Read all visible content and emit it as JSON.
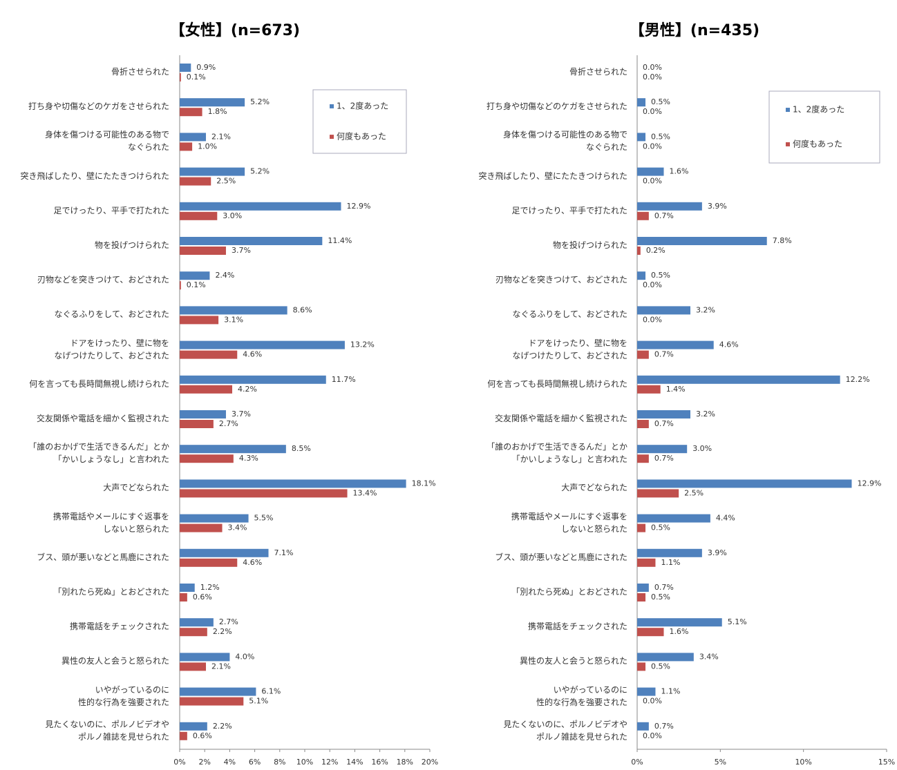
{
  "chart_data": [
    {
      "type": "barh",
      "title": "【女性】(n=673)",
      "categories": [
        "骨折させられた",
        "打ち身や切傷などのケガをさせられた",
        "身体を傷つける可能性のある物で\nなぐられた",
        "突き飛ばしたり、壁にたたきつけられた",
        "足でけったり、平手で打たれた",
        "物を投げつけられた",
        "刃物などを突きつけて、おどされた",
        "なぐるふりをして、おどされた",
        "ドアをけったり、壁に物を\nなげつけたりして、おどされた",
        "何を言っても長時間無視し続けられた",
        "交友関係や電話を細かく監視された",
        "「誰のおかげで生活できるんだ」とか\n「かいしょうなし」と言われた",
        "大声でどなられた",
        "携帯電話やメールにすぐ返事を\nしないと怒られた",
        "ブス、頭が悪いなどと馬鹿にされた",
        "「別れたら死ぬ」とおどされた",
        "携帯電話をチェックされた",
        "異性の友人と会うと怒られた",
        "いやがっているのに\n性的な行為を強要された",
        "見たくないのに、ポルノビデオや\nポルノ雑誌を見せられた"
      ],
      "series": [
        {
          "name": "1、2度あった",
          "color": "#4f81bd",
          "values": [
            0.9,
            5.2,
            2.1,
            5.2,
            12.9,
            11.4,
            2.4,
            8.6,
            13.2,
            11.7,
            3.7,
            8.5,
            18.1,
            5.5,
            7.1,
            1.2,
            2.7,
            4.0,
            6.1,
            2.2
          ],
          "value_labels": [
            "0.9%",
            "5.2%",
            "2.1%",
            "5.2%",
            "12.9%",
            "11.4%",
            "2.4%",
            "8.6%",
            "13.2%",
            "11.7%",
            "3.7%",
            "8.5%",
            "18.1%",
            "5.5%",
            "7.1%",
            "1.2%",
            "2.7%",
            "4.0%",
            "6.1%",
            "2.2%"
          ]
        },
        {
          "name": "何度もあった",
          "color": "#c0504d",
          "values": [
            0.1,
            1.8,
            1.0,
            2.5,
            3.0,
            3.7,
            0.1,
            3.1,
            4.6,
            4.2,
            2.7,
            4.3,
            13.4,
            3.4,
            4.6,
            0.6,
            2.2,
            2.1,
            5.1,
            0.6
          ],
          "value_labels": [
            "0.1%",
            "1.8%",
            "1.0%",
            "2.5%",
            "3.0%",
            "3.7%",
            "0.1%",
            "3.1%",
            "4.6%",
            "4.2%",
            "2.7%",
            "4.3%",
            "13.4%",
            "3.4%",
            "4.6%",
            "0.6%",
            "2.2%",
            "2.1%",
            "5.1%",
            "0.6%"
          ]
        }
      ],
      "xlim": [
        0,
        20
      ],
      "xticks": [
        {
          "value": 0,
          "label": "0%"
        },
        {
          "value": 2,
          "label": "2%"
        },
        {
          "value": 4,
          "label": "4%"
        },
        {
          "value": 6,
          "label": "6%"
        },
        {
          "value": 8,
          "label": "8%"
        },
        {
          "value": 10,
          "label": "10%"
        },
        {
          "value": 12,
          "label": "12%"
        },
        {
          "value": 14,
          "label": "14%"
        },
        {
          "value": 16,
          "label": "16%"
        },
        {
          "value": 18,
          "label": "18%"
        },
        {
          "value": 20,
          "label": "20%"
        }
      ],
      "legend": "upper right"
    },
    {
      "type": "barh",
      "title": "【男性】(n=435)",
      "categories": [
        "骨折させられた",
        "打ち身や切傷などのケガをさせられた",
        "身体を傷つける可能性のある物で\nなぐられた",
        "突き飛ばしたり、壁にたたきつけられた",
        "足でけったり、平手で打たれた",
        "物を投げつけられた",
        "刃物などを突きつけて、おどされた",
        "なぐるふりをして、おどされた",
        "ドアをけったり、壁に物を\nなげつけたりして、おどされた",
        "何を言っても長時間無視し続けられた",
        "交友関係や電話を細かく監視された",
        "「誰のおかげで生活できるんだ」とか\n「かいしょうなし」と言われた",
        "大声でどなられた",
        "携帯電話やメールにすぐ返事を\nしないと怒られた",
        "ブス、頭が悪いなどと馬鹿にされた",
        "「別れたら死ぬ」とおどされた",
        "携帯電話をチェックされた",
        "異性の友人と会うと怒られた",
        "いやがっているのに\n性的な行為を強要された",
        "見たくないのに、ポルノビデオや\nポルノ雑誌を見せられた"
      ],
      "series": [
        {
          "name": "1、2度あった",
          "color": "#4f81bd",
          "values": [
            0.0,
            0.5,
            0.5,
            1.6,
            3.9,
            7.8,
            0.5,
            3.2,
            4.6,
            12.2,
            3.2,
            3.0,
            12.9,
            4.4,
            3.9,
            0.7,
            5.1,
            3.4,
            1.1,
            0.7
          ],
          "value_labels": [
            "0.0%",
            "0.5%",
            "0.5%",
            "1.6%",
            "3.9%",
            "7.8%",
            "0.5%",
            "3.2%",
            "4.6%",
            "12.2%",
            "3.2%",
            "3.0%",
            "12.9%",
            "4.4%",
            "3.9%",
            "0.7%",
            "5.1%",
            "3.4%",
            "1.1%",
            "0.7%"
          ]
        },
        {
          "name": "何度もあった",
          "color": "#c0504d",
          "values": [
            0.0,
            0.0,
            0.0,
            0.0,
            0.7,
            0.2,
            0.0,
            0.0,
            0.7,
            1.4,
            0.7,
            0.7,
            2.5,
            0.5,
            1.1,
            0.5,
            1.6,
            0.5,
            0.0,
            0.0
          ],
          "value_labels": [
            "0.0%",
            "0.0%",
            "0.0%",
            "0.0%",
            "0.7%",
            "0.2%",
            "0.0%",
            "0.0%",
            "0.7%",
            "1.4%",
            "0.7%",
            "0.7%",
            "2.5%",
            "0.5%",
            "1.1%",
            "0.5%",
            "1.6%",
            "0.5%",
            "0.0%",
            "0.0%"
          ]
        }
      ],
      "xlim": [
        0,
        15
      ],
      "xticks": [
        {
          "value": 0,
          "label": "0%"
        },
        {
          "value": 5,
          "label": "5%"
        },
        {
          "value": 10,
          "label": "10%"
        },
        {
          "value": 15,
          "label": "15%"
        }
      ],
      "legend": "upper right"
    }
  ]
}
